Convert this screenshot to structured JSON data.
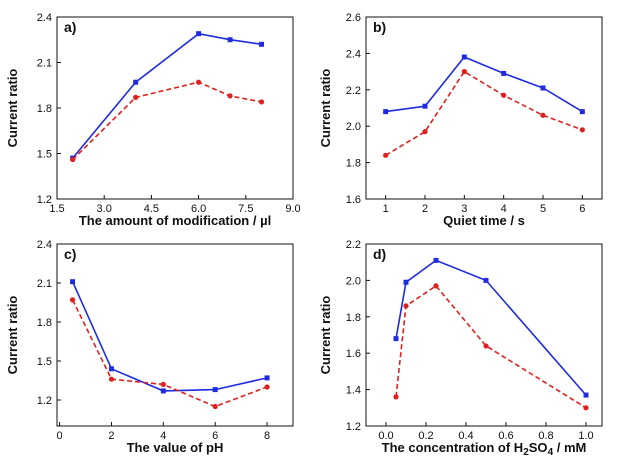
{
  "chart_data": [
    {
      "type": "line",
      "panel_label": "a)",
      "xlabel": "The amount of modification / µl",
      "ylabel": "Current ratio",
      "xlim": [
        1.5,
        9.0
      ],
      "ylim": [
        1.2,
        2.4
      ],
      "x_ticks": [
        "1.5",
        "3.0",
        "4.5",
        "6.0",
        "7.5",
        "9.0"
      ],
      "y_ticks": [
        "1.2",
        "1.5",
        "1.8",
        "2.1",
        "2.4"
      ],
      "x": [
        2,
        4,
        6,
        7,
        8
      ],
      "series": [
        {
          "color": "#1f2be0",
          "style": "solid",
          "marker": "square",
          "values": [
            1.47,
            1.97,
            2.29,
            2.25,
            2.22
          ]
        },
        {
          "color": "#e0201f",
          "style": "dashed",
          "marker": "circle",
          "values": [
            1.46,
            1.87,
            1.97,
            1.88,
            1.84
          ]
        }
      ]
    },
    {
      "type": "line",
      "panel_label": "b)",
      "xlabel": "Quiet time / s",
      "ylabel": "Current ratio",
      "xlim": [
        0.5,
        6.5
      ],
      "ylim": [
        1.6,
        2.6
      ],
      "x_ticks": [
        "1",
        "2",
        "3",
        "4",
        "5",
        "6"
      ],
      "y_ticks": [
        "1.6",
        "1.8",
        "2.0",
        "2.2",
        "2.4",
        "2.6"
      ],
      "x": [
        1,
        2,
        3,
        4,
        5,
        6
      ],
      "series": [
        {
          "color": "#1f2be0",
          "style": "solid",
          "marker": "square",
          "values": [
            2.08,
            2.11,
            2.38,
            2.29,
            2.21,
            2.08
          ]
        },
        {
          "color": "#e0201f",
          "style": "dashed",
          "marker": "circle",
          "values": [
            1.84,
            1.97,
            2.3,
            2.17,
            2.06,
            1.98
          ]
        }
      ]
    },
    {
      "type": "line",
      "panel_label": "c)",
      "xlabel": "The value of pH",
      "ylabel": "Current ratio",
      "xlim": [
        -0.1,
        9.0
      ],
      "ylim": [
        1.0,
        2.4
      ],
      "x_ticks": [
        "0",
        "2",
        "4",
        "6",
        "8"
      ],
      "y_ticks": [
        "1.2",
        "1.5",
        "1.8",
        "2.1",
        "2.4"
      ],
      "x": [
        0.5,
        2,
        4,
        6,
        8
      ],
      "series": [
        {
          "color": "#1f2be0",
          "style": "solid",
          "marker": "square",
          "values": [
            2.11,
            1.44,
            1.27,
            1.28,
            1.37
          ]
        },
        {
          "color": "#e0201f",
          "style": "dashed",
          "marker": "circle",
          "values": [
            1.97,
            1.36,
            1.32,
            1.15,
            1.3
          ]
        }
      ]
    },
    {
      "type": "line",
      "panel_label": "d)",
      "xlabel": "The concentration of H",
      "xlabel_sub1": "2",
      "xlabel_mid": "SO",
      "xlabel_sub2": "4",
      "xlabel_end": " / mM",
      "ylabel": "Current ratio",
      "xlim": [
        -0.1,
        1.08
      ],
      "ylim": [
        1.2,
        2.2
      ],
      "x_ticks": [
        "0.0",
        "0.2",
        "0.4",
        "0.6",
        "0.8",
        "1.0"
      ],
      "y_ticks": [
        "1.2",
        "1.4",
        "1.6",
        "1.8",
        "2.0",
        "2.2"
      ],
      "x": [
        0.05,
        0.1,
        0.25,
        0.5,
        1.0
      ],
      "series": [
        {
          "color": "#1f2be0",
          "style": "solid",
          "marker": "square",
          "values": [
            1.68,
            1.99,
            2.11,
            2.0,
            1.37
          ]
        },
        {
          "color": "#e0201f",
          "style": "dashed",
          "marker": "circle",
          "values": [
            1.36,
            1.86,
            1.97,
            1.64,
            1.3
          ]
        }
      ]
    }
  ]
}
